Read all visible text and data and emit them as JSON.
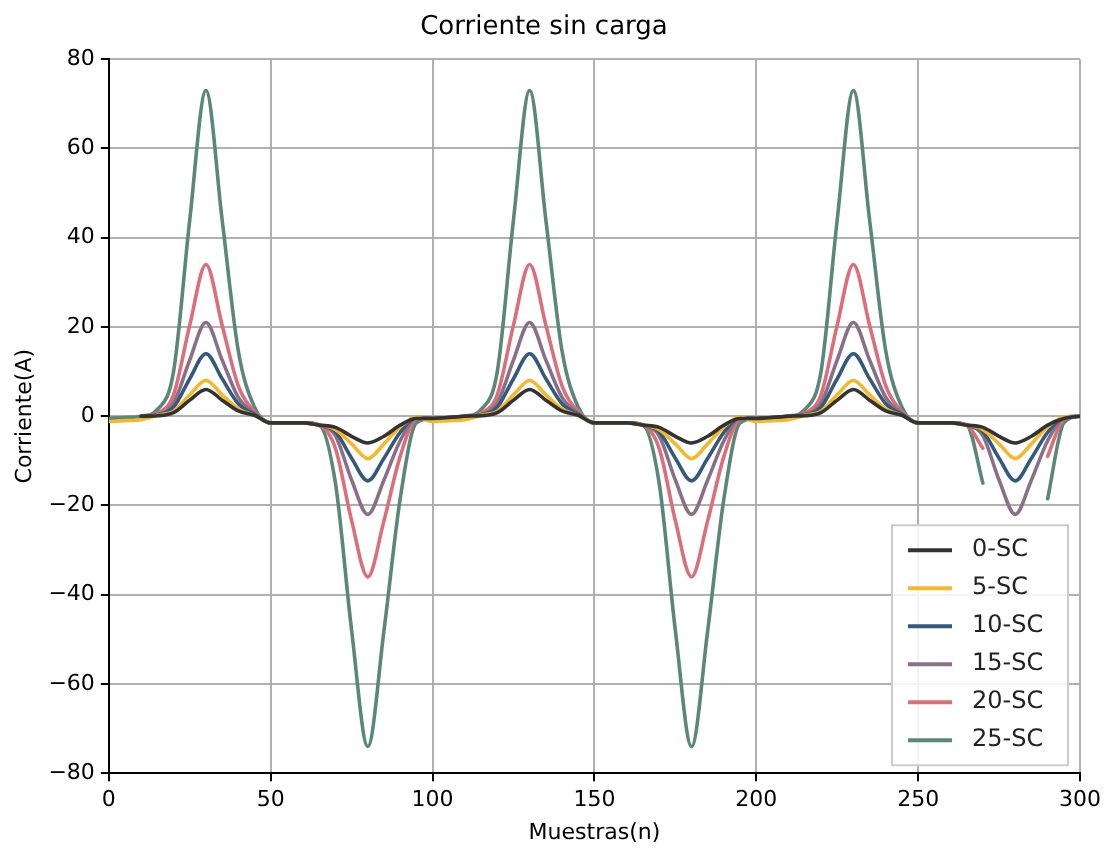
{
  "chart_data": {
    "type": "line",
    "title": "Corriente sin carga",
    "xlabel": "Muestras(n)",
    "ylabel": "Corriente(A)",
    "xlim": [
      0,
      300
    ],
    "ylim": [
      -80,
      80
    ],
    "xticks": [
      0,
      50,
      100,
      150,
      200,
      250,
      300
    ],
    "yticks": [
      {
        "value": -80,
        "label": "−80"
      },
      {
        "value": -60,
        "label": "−60"
      },
      {
        "value": -40,
        "label": "−40"
      },
      {
        "value": -20,
        "label": "−20"
      },
      0,
      20,
      40,
      60,
      80
    ],
    "grid": true,
    "legend": "bottom right",
    "marker": "none",
    "line_style": "solid",
    "x": [
      0,
      5,
      10,
      15,
      20,
      25,
      30,
      35,
      40,
      45,
      50,
      55,
      60,
      65,
      70,
      75,
      80,
      85,
      90,
      95,
      100,
      105,
      110,
      115,
      120,
      125,
      130,
      135,
      140,
      145,
      150,
      155,
      160,
      165,
      170,
      175,
      180,
      185,
      190,
      195,
      200,
      205,
      210,
      215,
      220,
      225,
      230,
      235,
      240,
      245,
      250,
      255,
      260,
      265,
      270,
      275,
      280,
      285,
      290,
      295,
      300
    ],
    "series": [
      {
        "name": "0-SC",
        "color": "#333333",
        "values": [
          null,
          null,
          0,
          0.1,
          0.8,
          3.6,
          6,
          3.6,
          1.2,
          0.2,
          -1.5,
          -1.5,
          -1.5,
          -2,
          -2.5,
          -4.5,
          -6,
          -4.5,
          -2,
          -0.5,
          -0.5,
          -0.3,
          0,
          0.1,
          0.8,
          3.6,
          6,
          3.6,
          1.2,
          0.2,
          -1.5,
          -1.5,
          -1.5,
          -2,
          -2.5,
          -4.5,
          -6,
          -4.5,
          -2,
          -0.5,
          -0.5,
          -0.3,
          0,
          0.1,
          0.8,
          3.6,
          6,
          3.6,
          1.2,
          0.2,
          -1.5,
          -1.5,
          -1.5,
          -2,
          -2.5,
          -4.5,
          -6,
          -4.5,
          -2,
          -0.5,
          0
        ]
      },
      {
        "name": "5-SC",
        "color": "#f5b829",
        "values": [
          -1.2,
          -1,
          -0.8,
          0.2,
          1.1,
          4.8,
          8,
          4.8,
          1.6,
          0.2,
          -1.5,
          -1.5,
          -1.5,
          -2,
          -3,
          -6.2,
          -9.5,
          -6.2,
          -2.4,
          -0.2,
          -1.2,
          -1,
          -0.8,
          0.2,
          1.1,
          4.8,
          8,
          4.8,
          1.6,
          0.2,
          -1.5,
          -1.5,
          -1.5,
          -2,
          -3,
          -6.2,
          -9.5,
          -6.2,
          -2.4,
          -0.2,
          -1.2,
          -1,
          -0.8,
          0.2,
          1.1,
          4.8,
          8,
          4.8,
          1.6,
          0.2,
          -1.5,
          -1.5,
          -1.5,
          -2,
          -3,
          -6.2,
          -9.5,
          -6.2,
          -2.4,
          -0.2,
          0
        ]
      },
      {
        "name": "10-SC",
        "color": "#34597e",
        "values": [
          null,
          null,
          0,
          0.3,
          2,
          8.4,
          14,
          8.4,
          2.8,
          0.4,
          -1.5,
          -1.5,
          -1.5,
          -2,
          -3.5,
          -9.4,
          -14.5,
          -9.4,
          -3.6,
          -0.3,
          -0.5,
          -0.3,
          0,
          0.3,
          2,
          8.4,
          14,
          8.4,
          2.8,
          0.4,
          -1.5,
          -1.5,
          -1.5,
          -2,
          -3.5,
          -9.4,
          -14.5,
          -9.4,
          -3.6,
          -0.3,
          -0.5,
          -0.3,
          0,
          0.3,
          2,
          8.4,
          14,
          8.4,
          2.8,
          0.4,
          -1.5,
          -1.5,
          -1.5,
          -2,
          -3.5,
          -9.4,
          -14.5,
          -9.4,
          -3.6,
          -0.3,
          0
        ]
      },
      {
        "name": "15-SC",
        "color": "#8a6f88",
        "values": [
          null,
          null,
          0,
          0.4,
          2.9,
          12.6,
          21,
          12.6,
          4.2,
          0.6,
          -1.5,
          -1.5,
          -1.5,
          -2,
          -4.4,
          -14.3,
          -22,
          -14.3,
          -5.5,
          -0.4,
          -0.5,
          -0.3,
          0,
          0.4,
          2.9,
          12.6,
          21,
          12.6,
          4.2,
          0.6,
          -1.5,
          -1.5,
          -1.5,
          -2,
          -4.4,
          -14.3,
          -22,
          -14.3,
          -5.5,
          -0.4,
          -0.5,
          -0.3,
          0,
          0.4,
          2.9,
          12.6,
          21,
          12.6,
          4.2,
          0.6,
          -1.5,
          -1.5,
          -1.5,
          -2,
          -4.4,
          -14.3,
          -22,
          -14.3,
          -5.5,
          -0.4,
          0
        ]
      },
      {
        "name": "20-SC",
        "color": "#dc6e7a",
        "values": [
          null,
          null,
          0,
          0.7,
          4.8,
          20.4,
          34,
          20.4,
          6.8,
          1,
          -1.5,
          -1.5,
          -1.5,
          -2,
          -7.2,
          -23.4,
          -36,
          -23.4,
          -9,
          -0.7,
          -0.5,
          -0.3,
          0,
          0.7,
          4.8,
          20.4,
          34,
          20.4,
          6.8,
          1,
          -1.5,
          -1.5,
          -1.5,
          -2,
          -7.2,
          -23.4,
          -36,
          -23.4,
          -9,
          -0.7,
          -0.5,
          -0.3,
          0,
          0.7,
          4.8,
          20.4,
          34,
          20.4,
          6.8,
          1,
          -1.5,
          -1.5,
          -1.5,
          -2,
          -7.2,
          null,
          null,
          null,
          -9,
          -0.7,
          0
        ]
      },
      {
        "name": "25-SC",
        "color": "#5a8878",
        "values": [
          -0.5,
          -0.3,
          0,
          1.5,
          10,
          44,
          73,
          44,
          14.6,
          2,
          -1.5,
          -1.5,
          -1.5,
          -2,
          -15,
          -48,
          -74,
          -48,
          -18.5,
          -1.5,
          -0.5,
          -0.3,
          0,
          1.5,
          10,
          44,
          73,
          44,
          14.6,
          2,
          -1.5,
          -1.5,
          -1.5,
          -2,
          -15,
          -48,
          -74,
          -48,
          -18.5,
          -1.5,
          -0.5,
          -0.3,
          0,
          1.5,
          10,
          44,
          73,
          44,
          14.6,
          2,
          -1.5,
          -1.5,
          -1.5,
          -2,
          -15,
          null,
          null,
          null,
          -18.5,
          -1.5,
          0
        ]
      }
    ]
  }
}
